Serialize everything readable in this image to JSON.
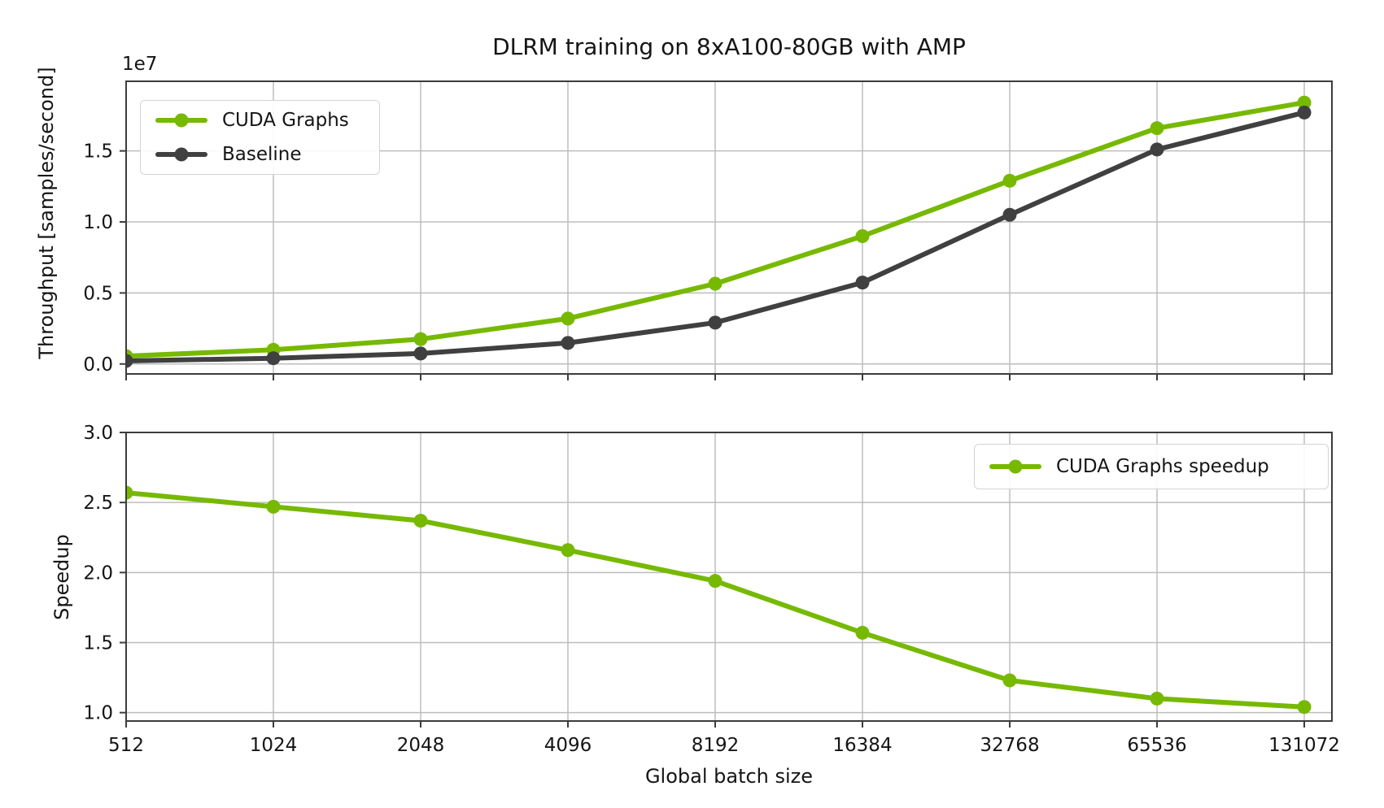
{
  "figure": {
    "title": "DLRM training on 8xA100-80GB with AMP",
    "xlabel": "Global batch size",
    "background_color": "#ffffff",
    "accent_green": "#76b900",
    "baseline_gray": "#404040"
  },
  "chart_data": [
    {
      "type": "line",
      "title": "DLRM training on 8xA100-80GB with AMP",
      "ylabel": "Throughput [samples/second]",
      "y_offset_label": "1e7",
      "x_scale": "log2-categorical",
      "categories": [
        "512",
        "1024",
        "2048",
        "4096",
        "8192",
        "16384",
        "32768",
        "65536",
        "131072"
      ],
      "series": [
        {
          "name": "CUDA Graphs",
          "color": "#76b900",
          "values": [
            550000,
            1000000,
            1750000,
            3200000,
            5650000,
            9000000,
            12900000,
            16600000,
            18400000
          ]
        },
        {
          "name": "Baseline",
          "color": "#404040",
          "values": [
            215000,
            405000,
            740000,
            1480000,
            2910000,
            5730000,
            10500000,
            15100000,
            17700000
          ]
        }
      ],
      "ylim": [
        -700000,
        19900000
      ],
      "y_ticks": {
        "values": [
          0,
          5000000,
          10000000,
          15000000
        ],
        "labels": [
          "0.0",
          "0.5",
          "1.0",
          "1.5"
        ]
      },
      "grid": true,
      "legend_position": "upper-left",
      "show_x_tick_labels": false
    },
    {
      "type": "line",
      "ylabel": "Speedup",
      "xlabel": "Global batch size",
      "x_scale": "log2-categorical",
      "categories": [
        "512",
        "1024",
        "2048",
        "4096",
        "8192",
        "16384",
        "32768",
        "65536",
        "131072"
      ],
      "series": [
        {
          "name": "CUDA Graphs speedup",
          "color": "#76b900",
          "values": [
            2.57,
            2.47,
            2.37,
            2.16,
            1.94,
            1.57,
            1.23,
            1.1,
            1.04
          ]
        }
      ],
      "ylim": [
        0.94,
        3.0
      ],
      "y_ticks": {
        "values": [
          1.0,
          1.5,
          2.0,
          2.5,
          3.0
        ],
        "labels": [
          "1.0",
          "1.5",
          "2.0",
          "2.5",
          "3.0"
        ]
      },
      "grid": true,
      "legend_position": "upper-right",
      "show_x_tick_labels": true
    }
  ]
}
